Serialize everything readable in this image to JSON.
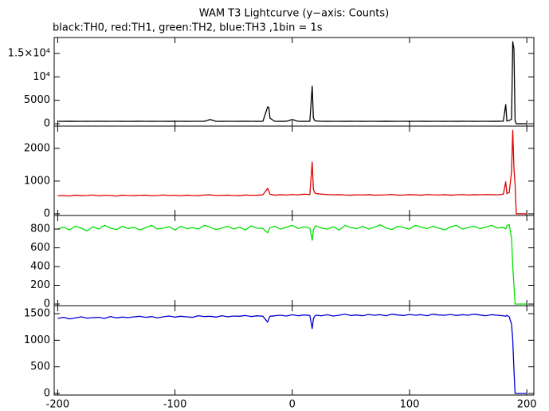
{
  "chart_data": [
    {
      "type": "line",
      "title": "WAM T3 Lightcurve (y−axis: Counts)",
      "subtitle": "black:TH0, red:TH1, green:TH2, blue:TH3 ,1bin = 1s",
      "x": [
        -200,
        -195,
        -190,
        -185,
        -180,
        -175,
        -170,
        -165,
        -160,
        -155,
        -150,
        -145,
        -140,
        -135,
        -130,
        -125,
        -120,
        -115,
        -110,
        -105,
        -100,
        -95,
        -90,
        -85,
        -80,
        -75,
        -70,
        -65,
        -60,
        -55,
        -50,
        -45,
        -40,
        -35,
        -30,
        -25,
        -21,
        -20,
        -19,
        -15,
        -10,
        -5,
        0,
        5,
        10,
        15,
        17,
        18,
        19,
        20,
        25,
        30,
        35,
        40,
        45,
        50,
        55,
        60,
        65,
        70,
        75,
        80,
        85,
        90,
        95,
        100,
        105,
        110,
        115,
        120,
        125,
        130,
        135,
        140,
        145,
        150,
        155,
        160,
        165,
        170,
        175,
        180,
        182,
        183,
        185,
        187,
        188,
        189,
        190,
        191,
        195,
        200
      ],
      "values": [
        520,
        510,
        530,
        515,
        525,
        510,
        520,
        530,
        515,
        520,
        525,
        510,
        520,
        515,
        530,
        520,
        510,
        525,
        520,
        515,
        530,
        520,
        510,
        525,
        520,
        515,
        900,
        520,
        515,
        525,
        520,
        510,
        530,
        520,
        515,
        525,
        3600,
        3500,
        1200,
        520,
        515,
        530,
        900,
        520,
        515,
        525,
        8000,
        1300,
        700,
        600,
        520,
        515,
        525,
        520,
        510,
        530,
        520,
        515,
        525,
        520,
        510,
        530,
        515,
        520,
        525,
        510,
        520,
        530,
        515,
        520,
        525,
        510,
        520,
        515,
        530,
        520,
        510,
        525,
        520,
        515,
        530,
        550,
        4100,
        600,
        700,
        1000,
        17500,
        16000,
        600,
        0,
        0,
        0
      ],
      "color": "#000000",
      "xlim": [
        -203,
        206
      ],
      "xticks": [
        -200,
        -100,
        0,
        100,
        200
      ],
      "ylim": [
        -500,
        18400
      ],
      "yticks": [
        0,
        5000,
        {
          "value": 10000,
          "label": "10⁴"
        },
        {
          "value": 15000,
          "label": "1.5×10⁴"
        }
      ]
    },
    {
      "type": "line",
      "x": [
        -200,
        -195,
        -190,
        -185,
        -180,
        -175,
        -170,
        -165,
        -160,
        -155,
        -150,
        -145,
        -140,
        -135,
        -130,
        -125,
        -120,
        -115,
        -110,
        -105,
        -100,
        -95,
        -90,
        -85,
        -80,
        -75,
        -70,
        -65,
        -60,
        -55,
        -50,
        -45,
        -40,
        -35,
        -30,
        -25,
        -21,
        -20,
        -19,
        -15,
        -10,
        -5,
        0,
        5,
        10,
        15,
        17,
        18,
        19,
        20,
        25,
        30,
        35,
        40,
        45,
        50,
        55,
        60,
        65,
        70,
        75,
        80,
        85,
        90,
        95,
        100,
        105,
        110,
        115,
        120,
        125,
        130,
        135,
        140,
        145,
        150,
        155,
        160,
        165,
        170,
        175,
        180,
        182,
        183,
        185,
        187,
        188,
        189,
        190,
        191,
        195,
        200
      ],
      "values": [
        550,
        560,
        545,
        570,
        555,
        560,
        575,
        550,
        565,
        560,
        545,
        570,
        560,
        555,
        565,
        570,
        550,
        560,
        575,
        560,
        565,
        550,
        570,
        560,
        555,
        575,
        580,
        560,
        565,
        570,
        560,
        555,
        575,
        565,
        570,
        580,
        780,
        700,
        600,
        570,
        585,
        575,
        590,
        580,
        600,
        590,
        1580,
        750,
        650,
        620,
        600,
        590,
        580,
        585,
        575,
        570,
        580,
        575,
        585,
        570,
        575,
        580,
        590,
        570,
        575,
        585,
        580,
        570,
        590,
        580,
        575,
        585,
        570,
        580,
        590,
        575,
        585,
        580,
        590,
        585,
        580,
        600,
        980,
        620,
        650,
        1300,
        2550,
        1400,
        900,
        0,
        0,
        0
      ],
      "color": "#e00000",
      "xlim": [
        -203,
        206
      ],
      "xticks": [
        -200,
        -100,
        0,
        100,
        200
      ],
      "ylim": [
        -50,
        2680
      ],
      "yticks": [
        0,
        1000,
        2000
      ]
    },
    {
      "type": "line",
      "x": [
        -200,
        -195,
        -190,
        -185,
        -180,
        -175,
        -170,
        -165,
        -160,
        -155,
        -150,
        -145,
        -140,
        -135,
        -130,
        -125,
        -120,
        -115,
        -110,
        -105,
        -100,
        -95,
        -90,
        -85,
        -80,
        -75,
        -70,
        -65,
        -60,
        -55,
        -50,
        -45,
        -40,
        -35,
        -30,
        -25,
        -21,
        -20,
        -19,
        -15,
        -10,
        -5,
        0,
        5,
        10,
        15,
        17,
        18,
        19,
        20,
        25,
        30,
        35,
        40,
        45,
        50,
        55,
        60,
        65,
        70,
        75,
        80,
        85,
        90,
        95,
        100,
        105,
        110,
        115,
        120,
        125,
        130,
        135,
        140,
        145,
        150,
        155,
        160,
        165,
        170,
        175,
        180,
        182,
        183,
        185,
        187,
        188,
        189,
        190,
        191,
        195,
        200
      ],
      "values": [
        800,
        820,
        790,
        830,
        810,
        780,
        825,
        800,
        840,
        810,
        795,
        830,
        805,
        820,
        790,
        815,
        840,
        800,
        810,
        825,
        790,
        830,
        805,
        815,
        800,
        840,
        820,
        795,
        810,
        830,
        800,
        820,
        790,
        835,
        810,
        805,
        760,
        790,
        815,
        830,
        800,
        820,
        840,
        805,
        825,
        810,
        680,
        790,
        820,
        835,
        810,
        800,
        825,
        790,
        840,
        815,
        805,
        830,
        800,
        820,
        845,
        810,
        795,
        830,
        815,
        800,
        840,
        820,
        805,
        830,
        810,
        790,
        825,
        840,
        800,
        815,
        830,
        805,
        820,
        840,
        810,
        820,
        800,
        835,
        850,
        700,
        400,
        200,
        0,
        0,
        0,
        0
      ],
      "color": "#00e000",
      "xlim": [
        -203,
        206
      ],
      "xticks": [
        -200,
        -100,
        0,
        100,
        200
      ],
      "ylim": [
        -17,
        945
      ],
      "yticks": [
        0,
        200,
        400,
        600,
        800
      ]
    },
    {
      "type": "line",
      "x": [
        -200,
        -195,
        -190,
        -185,
        -180,
        -175,
        -170,
        -165,
        -160,
        -155,
        -150,
        -145,
        -140,
        -135,
        -130,
        -125,
        -120,
        -115,
        -110,
        -105,
        -100,
        -95,
        -90,
        -85,
        -80,
        -75,
        -70,
        -65,
        -60,
        -55,
        -50,
        -45,
        -40,
        -35,
        -30,
        -25,
        -21,
        -20,
        -19,
        -15,
        -10,
        -5,
        0,
        5,
        10,
        15,
        17,
        18,
        19,
        20,
        25,
        30,
        35,
        40,
        45,
        50,
        55,
        60,
        65,
        70,
        75,
        80,
        85,
        90,
        95,
        100,
        105,
        110,
        115,
        120,
        125,
        130,
        135,
        140,
        145,
        150,
        155,
        160,
        165,
        170,
        175,
        180,
        182,
        183,
        185,
        187,
        188,
        189,
        190,
        191,
        195,
        200
      ],
      "values": [
        1410,
        1430,
        1400,
        1420,
        1440,
        1415,
        1425,
        1430,
        1410,
        1445,
        1420,
        1435,
        1425,
        1440,
        1450,
        1430,
        1445,
        1420,
        1440,
        1455,
        1435,
        1450,
        1440,
        1430,
        1460,
        1445,
        1450,
        1435,
        1460,
        1440,
        1455,
        1450,
        1465,
        1445,
        1460,
        1450,
        1340,
        1400,
        1450,
        1460,
        1470,
        1455,
        1480,
        1460,
        1475,
        1465,
        1220,
        1400,
        1450,
        1470,
        1460,
        1480,
        1455,
        1470,
        1490,
        1465,
        1475,
        1460,
        1485,
        1470,
        1480,
        1460,
        1490,
        1475,
        1465,
        1485,
        1470,
        1480,
        1460,
        1490,
        1475,
        1470,
        1485,
        1465,
        1480,
        1470,
        1490,
        1475,
        1460,
        1480,
        1470,
        1460,
        1450,
        1470,
        1440,
        1300,
        1000,
        450,
        0,
        0,
        0,
        0
      ],
      "color": "#0000d0",
      "xlim": [
        -203,
        206
      ],
      "xticks": [
        -200,
        -100,
        0,
        100,
        200
      ],
      "ylim": [
        -30,
        1650
      ],
      "yticks": [
        0,
        500,
        1000,
        1500
      ]
    }
  ]
}
